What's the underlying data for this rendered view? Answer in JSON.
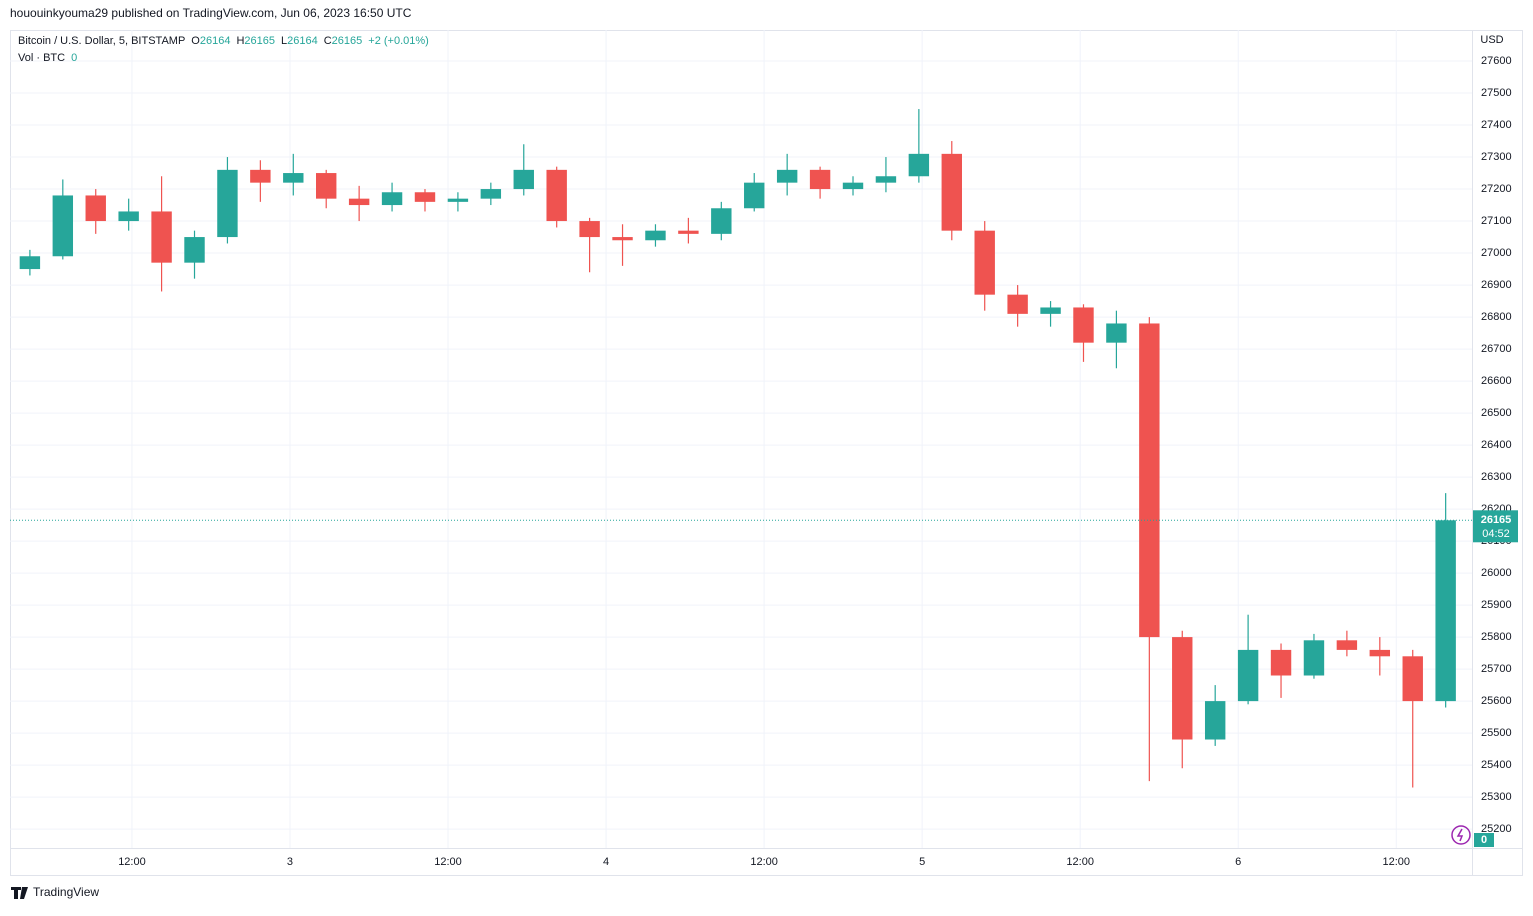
{
  "header": {
    "publisher_line": "hououinkyouma29 published on TradingView.com, Jun 06, 2023 16:50 UTC",
    "footer": "TradingView"
  },
  "chart_data": {
    "type": "candlestick",
    "symbol": "Bitcoin / U.S. Dollar, 5, BITSTAMP",
    "legend": [
      {
        "label": "O",
        "value": 26164
      },
      {
        "label": "H",
        "value": 26165
      },
      {
        "label": "L",
        "value": 26164
      },
      {
        "label": "C",
        "value": 26165
      }
    ],
    "change": "+2 (+0.01%)",
    "volume_label": "Vol · BTC",
    "volume_value": 0,
    "currency": "USD",
    "last_price": 26165,
    "countdown": "04:52",
    "up_color": "#26a69a",
    "down_color": "#ef5350",
    "x": [
      3,
      5.5,
      8,
      10.5,
      13,
      15.5,
      18,
      20.5,
      23,
      25.5,
      28,
      30.5,
      33,
      35.5,
      38,
      40.5,
      43,
      45.5,
      48,
      50.5,
      53,
      55.5,
      58,
      60.5,
      63,
      65.5,
      68,
      70.5,
      73,
      75.5,
      78,
      80.5,
      83,
      85.5,
      88,
      90.5,
      93,
      95.5,
      98,
      100.5,
      103,
      105.5,
      108,
      110.5
    ],
    "open": [
      26950,
      26990,
      27180,
      27100,
      27130,
      26970,
      27050,
      27260,
      27220,
      27250,
      27170,
      27150,
      27190,
      27160,
      27170,
      27200,
      27260,
      27100,
      27050,
      27040,
      27070,
      27060,
      27140,
      27220,
      27260,
      27200,
      27220,
      27240,
      27310,
      27070,
      26870,
      26810,
      26830,
      26720,
      26780,
      25800,
      25480,
      25600,
      25760,
      25680,
      25790,
      25760,
      25740,
      25600
    ],
    "high": [
      27010,
      27230,
      27200,
      27170,
      27240,
      27070,
      27300,
      27290,
      27310,
      27260,
      27210,
      27220,
      27200,
      27190,
      27220,
      27340,
      27270,
      27110,
      27090,
      27090,
      27110,
      27160,
      27250,
      27310,
      27270,
      27240,
      27300,
      27450,
      27350,
      27100,
      26900,
      26850,
      26840,
      26820,
      26800,
      25820,
      25650,
      25870,
      25780,
      25810,
      25820,
      25800,
      25760,
      26250
    ],
    "low": [
      26930,
      26980,
      27060,
      27070,
      26880,
      26920,
      27030,
      27160,
      27180,
      27140,
      27100,
      27130,
      27130,
      27130,
      27150,
      27180,
      27080,
      26940,
      26960,
      27020,
      27030,
      27040,
      27130,
      27180,
      27170,
      27180,
      27190,
      27220,
      27040,
      26820,
      26770,
      26770,
      26660,
      26640,
      25350,
      25390,
      25460,
      25590,
      25610,
      25670,
      25740,
      25680,
      25330,
      25580
    ],
    "close": [
      26990,
      27180,
      27100,
      27130,
      26970,
      27050,
      27260,
      27220,
      27250,
      27170,
      27150,
      27190,
      27160,
      27170,
      27200,
      27260,
      27100,
      27050,
      27040,
      27070,
      27060,
      27140,
      27220,
      27260,
      27200,
      27220,
      27240,
      27310,
      27070,
      26870,
      26810,
      26830,
      26720,
      26780,
      25800,
      25480,
      25600,
      25760,
      25680,
      25790,
      25760,
      25740,
      25600,
      26165
    ],
    "xlim": [
      2.74,
      113.75
    ],
    "xticks": [
      {
        "value": 12,
        "label": "12:00"
      },
      {
        "value": 24,
        "label": "3"
      },
      {
        "value": 36,
        "label": "12:00"
      },
      {
        "value": 48,
        "label": "4"
      },
      {
        "value": 60,
        "label": "12:00"
      },
      {
        "value": 72,
        "label": "5"
      },
      {
        "value": 84,
        "label": "12:00"
      },
      {
        "value": 96,
        "label": "6"
      },
      {
        "value": 108,
        "label": "12:00"
      }
    ],
    "ylim": [
      25141,
      27697
    ],
    "yticks": [
      25200,
      25300,
      25400,
      25500,
      25600,
      25700,
      25800,
      25900,
      26000,
      26100,
      26200,
      26300,
      26400,
      26500,
      26600,
      26700,
      26800,
      26900,
      27000,
      27100,
      27200,
      27300,
      27400,
      27500,
      27600
    ],
    "grid": true
  }
}
